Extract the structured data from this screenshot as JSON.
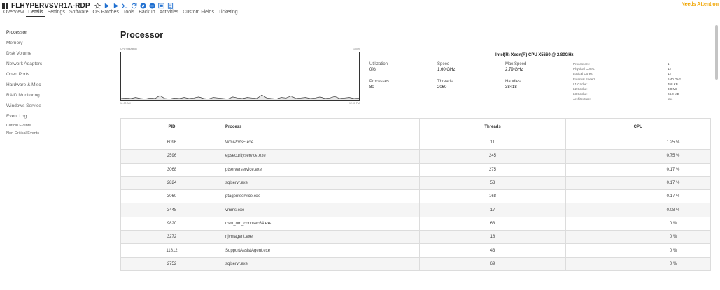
{
  "device": {
    "name": "FLHYPERVSVR1A-RDP",
    "status": "Needs Attention",
    "status_color": "#f0a500"
  },
  "toolbar_icons": [
    "star-icon",
    "play-icon",
    "play-icon",
    "terminal-icon",
    "refresh-icon",
    "navigate-icon",
    "stop-circle-icon",
    "screen-share-icon",
    "document-icon"
  ],
  "tabs": [
    "Overview",
    "Details",
    "Settings",
    "Software",
    "OS Patches",
    "Tools",
    "Backup",
    "Activities",
    "Custom Fields",
    "Ticketing"
  ],
  "active_tab": "Details",
  "sidebar": {
    "items": [
      "Processor",
      "Memory",
      "Disk Volume",
      "Network Adapters",
      "Open Ports",
      "Hardware & Misc",
      "RAID Monitoring",
      "Windows Service",
      "Event Log"
    ],
    "sub_items": [
      "Critical Events",
      "Non-Critical Events"
    ],
    "active": "Processor"
  },
  "page": {
    "title": "Processor"
  },
  "chart": {
    "top_left": "CPU Utilization",
    "top_right": "100%",
    "bottom_left": "11:00 AM",
    "bottom_right": "12:00 PM",
    "ylim": [
      0,
      100
    ],
    "values": [
      3,
      4,
      3,
      5,
      3,
      2,
      4,
      3,
      9,
      3,
      2,
      4,
      3,
      5,
      3,
      4,
      6,
      3,
      2,
      5,
      4,
      3,
      2,
      6,
      4,
      3,
      5,
      4,
      3,
      10,
      4,
      3,
      2,
      5,
      4,
      8,
      3,
      4,
      5,
      3,
      4,
      6,
      3,
      4,
      7,
      3,
      4,
      5,
      3,
      4
    ]
  },
  "cpu": {
    "name": "Intel(R) Xeon(R) CPU X5660 @ 2.80GHz",
    "stats": {
      "utilization": {
        "label": "Utilization",
        "value": "0%"
      },
      "speed": {
        "label": "Speed",
        "value": "1.60 GHz"
      },
      "max_speed": {
        "label": "Max Speed",
        "value": "2.79 GHz"
      },
      "processes": {
        "label": "Processes",
        "value": "80"
      },
      "threads": {
        "label": "Threads",
        "value": "2060"
      },
      "handles": {
        "label": "Handles",
        "value": "38418"
      }
    },
    "specs": [
      {
        "k": "Processors:",
        "v": "1"
      },
      {
        "k": "Physical Cores:",
        "v": "12"
      },
      {
        "k": "Logical Cores:",
        "v": "12"
      },
      {
        "k": "External Speed:",
        "v": "6.40 GHz"
      },
      {
        "k": "L1 Cache:",
        "v": "768 KB"
      },
      {
        "k": "L2 Cache:",
        "v": "3.0 MB"
      },
      {
        "k": "L3 Cache:",
        "v": "24.0 MB"
      },
      {
        "k": "Architecture:",
        "v": "x64"
      }
    ]
  },
  "table": {
    "headers": {
      "pid": "PID",
      "process": "Process",
      "threads": "Threads",
      "cpu": "CPU"
    },
    "rows": [
      {
        "pid": "6096",
        "process": "WmiPrvSE.exe",
        "threads": "11",
        "cpu": "1.25 %"
      },
      {
        "pid": "2596",
        "process": "epsecurityservice.exe",
        "threads": "245",
        "cpu": "0.75 %"
      },
      {
        "pid": "3068",
        "process": "ptserverservice.exe",
        "threads": "275",
        "cpu": "0.17 %"
      },
      {
        "pid": "2824",
        "process": "sqlservr.exe",
        "threads": "53",
        "cpu": "0.17 %"
      },
      {
        "pid": "3060",
        "process": "ptagentservice.exe",
        "threads": "168",
        "cpu": "0.17 %"
      },
      {
        "pid": "3448",
        "process": "vmms.exe",
        "threads": "17",
        "cpu": "0.08 %"
      },
      {
        "pid": "9820",
        "process": "dsm_om_connsvc64.exe",
        "threads": "63",
        "cpu": "0 %"
      },
      {
        "pid": "3272",
        "process": "njvmagent.exe",
        "threads": "18",
        "cpu": "0 %"
      },
      {
        "pid": "11812",
        "process": "SupportAssistAgent.exe",
        "threads": "43",
        "cpu": "0 %"
      },
      {
        "pid": "2752",
        "process": "sqlservr.exe",
        "threads": "69",
        "cpu": "0 %"
      }
    ]
  }
}
